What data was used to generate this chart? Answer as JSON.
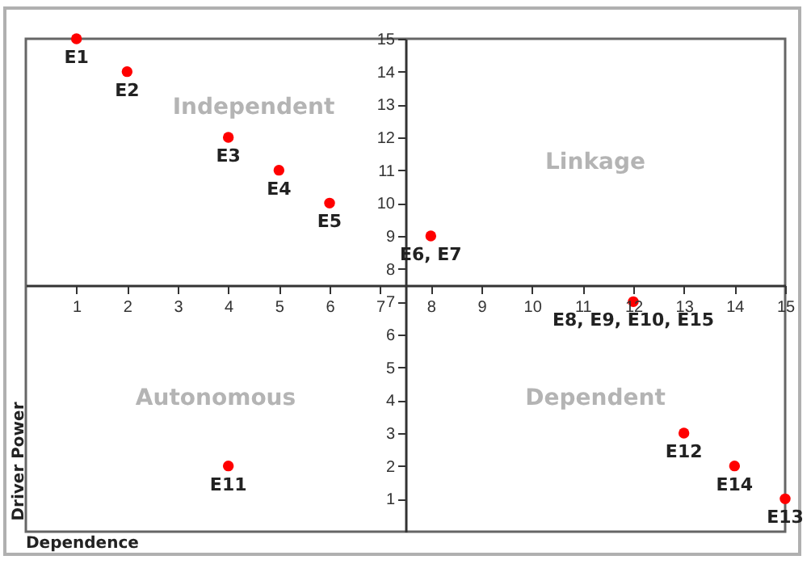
{
  "chart_data": {
    "type": "scatter",
    "xlabel": "Dependence",
    "ylabel": "Driver Power",
    "x": [
      1,
      2,
      4,
      5,
      6,
      8,
      12,
      4,
      13,
      14,
      15
    ],
    "series": [
      {
        "color": "#ff0000",
        "values": [
          15,
          14,
          12,
          11,
          10,
          9,
          7,
          2,
          3,
          2,
          1
        ]
      }
    ],
    "xlim": [
      0,
      15
    ],
    "ylim": [
      0,
      15
    ],
    "xticks": [
      1,
      2,
      3,
      4,
      5,
      6,
      7,
      8,
      9,
      10,
      11,
      12,
      13,
      14,
      15
    ],
    "yticks": [
      1,
      2,
      3,
      4,
      5,
      6,
      7,
      8,
      9,
      10,
      11,
      12,
      13,
      14,
      15
    ],
    "marker": "circle",
    "grid": false,
    "annotations": [
      "Independent",
      "Linkage",
      "Autonomous",
      "Dependent",
      {
        "text": "E1",
        "x": 1,
        "y": 15
      },
      {
        "text": "E2",
        "x": 2,
        "y": 14
      },
      {
        "text": "E3",
        "x": 4,
        "y": 12
      },
      {
        "text": "E4",
        "x": 5,
        "y": 11
      },
      {
        "text": "E5",
        "x": 6,
        "y": 10
      },
      {
        "text": "E6, E7",
        "x": 8,
        "y": 9
      },
      {
        "text": "E8, E9, E10, E15",
        "x": 12,
        "y": 7
      },
      {
        "text": "E11",
        "x": 4,
        "y": 2
      },
      {
        "text": "E12",
        "x": 13,
        "y": 3
      },
      {
        "text": "E14",
        "x": 14,
        "y": 2
      },
      {
        "text": "E13",
        "x": 15,
        "y": 1
      }
    ]
  }
}
